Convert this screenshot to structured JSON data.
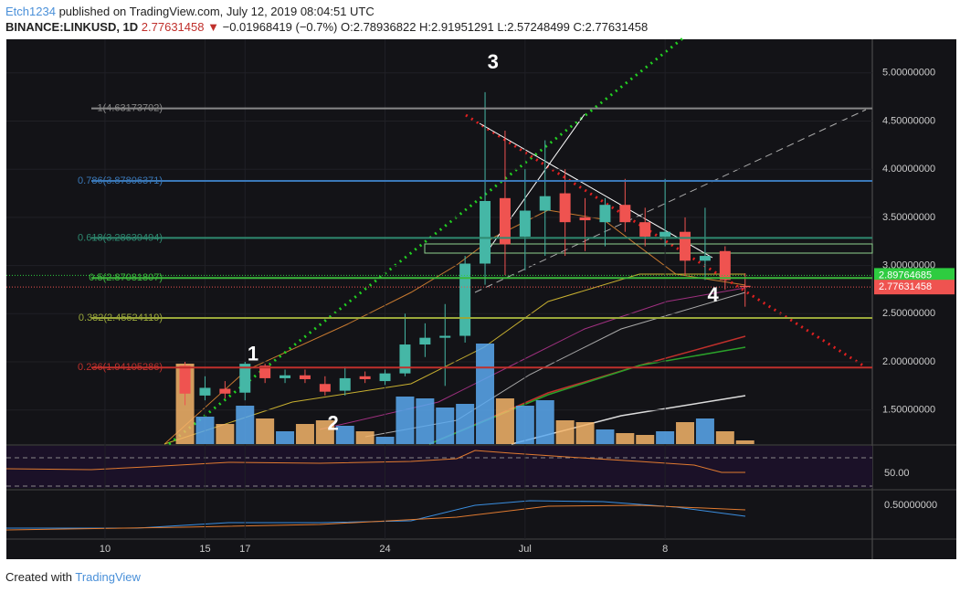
{
  "header": {
    "author": "Etch1234",
    "published": "published on TradingView.com, July 12, 2019 08:04:51 UTC",
    "symbol": "BINANCE:LINKUSD, 1D",
    "last": "2.77631458",
    "change": "−0.01968419 (−0.7%)",
    "open": "O:2.78936822",
    "high": "H:2.91951291",
    "low": "L:2.57248499",
    "close": "C:2.77631458"
  },
  "footer": {
    "created": "Created with",
    "brand": "TradingView"
  },
  "chart_data": {
    "type": "candlestick",
    "x": [
      14,
      15,
      16,
      17,
      18,
      19,
      20,
      21,
      22,
      23,
      24,
      25,
      26,
      27,
      28,
      29,
      30,
      31,
      32,
      33,
      34,
      35,
      36,
      37,
      38,
      39,
      40,
      41,
      42
    ],
    "open": [
      1.96,
      1.65,
      1.72,
      1.68,
      1.96,
      1.83,
      1.86,
      1.77,
      1.7,
      1.85,
      1.8,
      1.88,
      2.18,
      2.25,
      2.27,
      3.02,
      3.7,
      3.3,
      3.57,
      3.75,
      3.5,
      3.45,
      3.63,
      3.45,
      3.3,
      3.35,
      3.05,
      3.15,
      2.78936822
    ],
    "high": [
      2.0,
      1.85,
      1.8,
      2.0,
      1.98,
      1.92,
      1.92,
      1.85,
      1.95,
      1.9,
      1.92,
      2.5,
      2.4,
      2.6,
      3.1,
      4.8,
      4.4,
      4.0,
      4.3,
      4.0,
      3.7,
      3.7,
      3.9,
      3.6,
      3.9,
      3.5,
      3.6,
      3.2,
      2.91951291
    ],
    "low": [
      1.55,
      1.6,
      1.62,
      1.6,
      1.78,
      1.78,
      1.78,
      1.65,
      1.65,
      1.78,
      1.76,
      1.85,
      2.05,
      1.75,
      2.2,
      2.8,
      2.9,
      2.95,
      3.1,
      3.1,
      3.15,
      3.2,
      3.35,
      3.2,
      3.2,
      2.9,
      2.85,
      2.75,
      2.57248499
    ],
    "close": [
      1.67,
      1.73,
      1.67,
      1.98,
      1.83,
      1.86,
      1.82,
      1.69,
      1.83,
      1.82,
      1.88,
      2.18,
      2.25,
      2.27,
      3.02,
      3.67,
      3.22,
      3.57,
      3.72,
      3.45,
      3.47,
      3.63,
      3.45,
      3.3,
      3.35,
      3.05,
      3.1,
      2.85,
      2.77631458
    ],
    "volume": [
      88,
      30,
      22,
      42,
      28,
      14,
      22,
      26,
      20,
      14,
      8,
      52,
      50,
      40,
      44,
      110,
      50,
      42,
      48,
      26,
      24,
      16,
      12,
      10,
      14,
      24,
      28,
      14,
      4
    ],
    "up_color": "#45b7a6",
    "down_color": "#ef5350",
    "up_volume_color": "#5aa9f0",
    "down_volume_color": "#f5b56a",
    "xlim": [
      5.07,
      48.36
    ],
    "xticks": [
      10,
      17,
      24,
      {
        "value": 31,
        "label": "Jul"
      },
      {
        "value": 38,
        "label": "8"
      },
      15.0
    ],
    "ylim": [
      1.2,
      5.5
    ],
    "yticks": [
      {
        "value": 5,
        "label": "5.00000000"
      },
      {
        "value": 4.5,
        "label": "4.50000000"
      },
      {
        "value": 4,
        "label": "4.00000000"
      },
      {
        "value": 3.5,
        "label": "3.50000000"
      },
      {
        "value": 3,
        "label": "3.00000000"
      },
      {
        "value": 2.5,
        "label": "2.50000000"
      },
      {
        "value": 2,
        "label": "2.00000000"
      },
      {
        "value": 1.5,
        "label": "1.50000000"
      }
    ],
    "fib_levels": [
      {
        "value": 4.63173702,
        "label": "1(4.63173702)",
        "color": "#888888"
      },
      {
        "value": 3.87806371,
        "label": "0.786(3.87806371)",
        "color": "#3a78b8"
      },
      {
        "value": 3.28639494,
        "label": "0.618(3.28639494)",
        "color": "#2e8a70"
      },
      {
        "value": 2.87081807,
        "label": "0.5(2.87081807)",
        "color": "#3cb83c"
      },
      {
        "value": 2.45524119,
        "label": "0.382(2.45524119)",
        "color": "#9aa83a"
      },
      {
        "value": 1.94105286,
        "label": "0.236(1.94105286)",
        "color": "#c0302c"
      }
    ],
    "price_tags": [
      {
        "value": 2.89764685,
        "label": "2.89764685",
        "color": "#2ecc40"
      },
      {
        "value": 2.77631458,
        "label": "2.77631458",
        "color": "#ef5350"
      }
    ],
    "annotations": [
      {
        "text": "1",
        "x": 17.4,
        "y": 2.07
      },
      {
        "text": "2",
        "x": 21.4,
        "y": 1.35
      },
      {
        "text": "3",
        "x": 29.4,
        "y": 5.1
      },
      {
        "text": "4",
        "x": 40.4,
        "y": 2.68
      }
    ],
    "rsi_level": {
      "value": 50,
      "label": "50.00"
    },
    "macd_level": {
      "value": 0.5,
      "label": "0.50000000"
    }
  }
}
